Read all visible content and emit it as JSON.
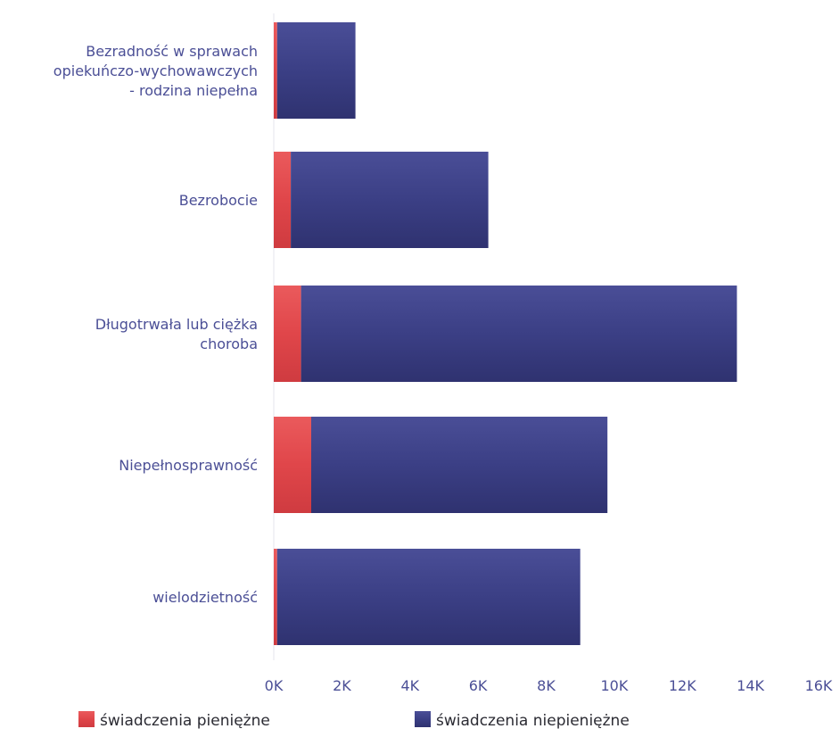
{
  "chart_data": {
    "type": "bar",
    "orientation": "horizontal",
    "stacked": true,
    "categories": [
      "Bezradność w sprawach opiekuńczo-wychowawczych - rodzina niepełna",
      "Bezrobocie",
      "Długotrwała lub ciężka choroba",
      "Niepełnosprawność",
      "wielodzietność"
    ],
    "category_lines": [
      [
        "Bezradność w sprawach",
        "opiekuńczo-wychowawczych",
        "- rodzina niepełna"
      ],
      [
        "Bezrobocie"
      ],
      [
        "Długotrwała lub ciężka",
        "choroba"
      ],
      [
        "Niepełnosprawność"
      ],
      [
        "wielodzietność"
      ]
    ],
    "series": [
      {
        "name": "świadczenia pieniężne",
        "color": "#e0464a",
        "values": [
          100,
          500,
          800,
          1100,
          100
        ]
      },
      {
        "name": "świadczenia niepieniężne",
        "color": "#3b3f85",
        "values": [
          2300,
          5800,
          12800,
          8700,
          8900
        ]
      }
    ],
    "xlim": [
      0,
      16000
    ],
    "x_ticks": [
      0,
      2000,
      4000,
      6000,
      8000,
      10000,
      12000,
      14000,
      16000
    ],
    "x_tick_labels": [
      "0K",
      "2K",
      "4K",
      "6K",
      "8K",
      "10K",
      "12K",
      "14K",
      "16K"
    ],
    "grid": false,
    "legend_position": "bottom",
    "title": "",
    "xlabel": "",
    "ylabel": ""
  }
}
